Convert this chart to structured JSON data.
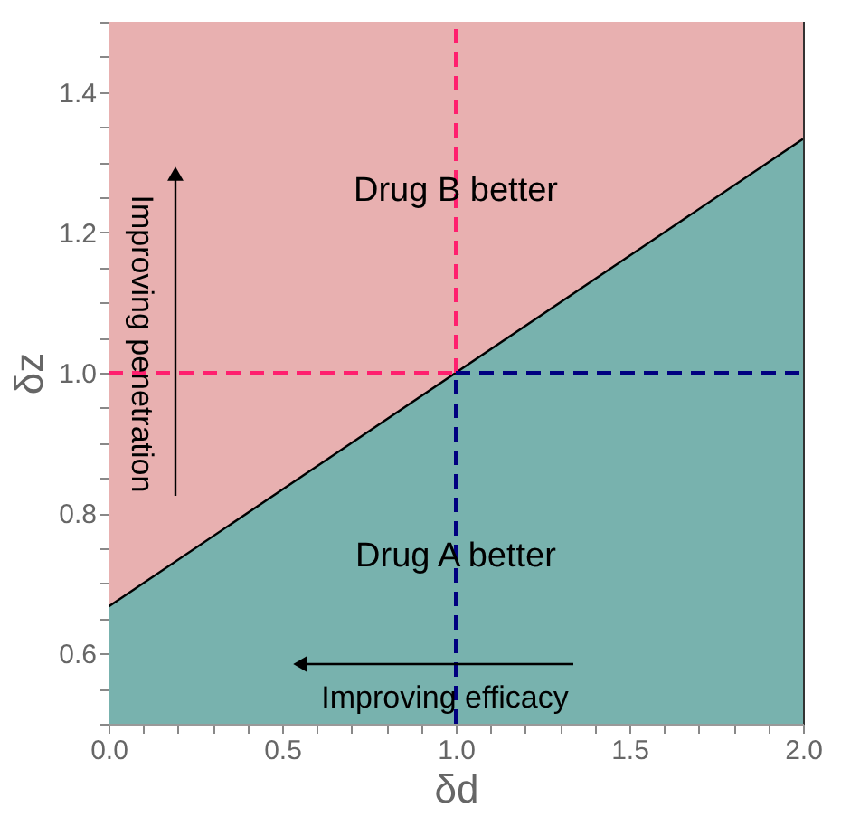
{
  "chart_data": {
    "type": "area",
    "xlabel": "δd",
    "ylabel": "δz",
    "xlim": [
      0,
      2
    ],
    "ylim": [
      0.5,
      1.5
    ],
    "xticks": [
      {
        "value": 0,
        "label": "0.0"
      },
      {
        "value": 0.1,
        "label": null
      },
      {
        "value": 0.2,
        "label": null
      },
      {
        "value": 0.3,
        "label": null
      },
      {
        "value": 0.4,
        "label": null
      },
      {
        "value": 0.5,
        "label": "0.5"
      },
      {
        "value": 0.6,
        "label": null
      },
      {
        "value": 0.7,
        "label": null
      },
      {
        "value": 0.8,
        "label": null
      },
      {
        "value": 0.9,
        "label": null
      },
      {
        "value": 1,
        "label": "1.0"
      },
      {
        "value": 1.1,
        "label": null
      },
      {
        "value": 1.2,
        "label": null
      },
      {
        "value": 1.3,
        "label": null
      },
      {
        "value": 1.4,
        "label": null
      },
      {
        "value": 1.5,
        "label": "1.5"
      },
      {
        "value": 1.6,
        "label": null
      },
      {
        "value": 1.7,
        "label": null
      },
      {
        "value": 1.8,
        "label": null
      },
      {
        "value": 1.9,
        "label": null
      },
      {
        "value": 2,
        "label": "2.0"
      }
    ],
    "yticks": [
      {
        "value": 0.5,
        "label": null
      },
      {
        "value": 0.55,
        "label": null
      },
      0.6,
      {
        "value": 0.65,
        "label": null
      },
      {
        "value": 0.7,
        "label": null
      },
      {
        "value": 0.75,
        "label": null
      },
      0.8,
      {
        "value": 0.85,
        "label": null
      },
      {
        "value": 0.9,
        "label": null
      },
      {
        "value": 0.95,
        "label": null
      },
      {
        "value": 1,
        "label": "1.0"
      },
      {
        "value": 1.05,
        "label": null
      },
      {
        "value": 1.1,
        "label": null
      },
      {
        "value": 1.15,
        "label": null
      },
      1.2,
      {
        "value": 1.25,
        "label": null
      },
      {
        "value": 1.3,
        "label": null
      },
      {
        "value": 1.35,
        "label": null
      },
      1.4,
      {
        "value": 1.45,
        "label": null
      },
      {
        "value": 1.5,
        "label": null
      }
    ],
    "bands": [
      {
        "axis": "y",
        "from": 0.5,
        "to": 1.5,
        "color": "#e8b0b0"
      }
    ],
    "series": [
      {
        "color": "#78b2ae",
        "x": [
          0,
          2
        ],
        "values": [
          0.667,
          1.333
        ]
      },
      {
        "type": "line",
        "color": "#ff1f6e",
        "x": [
          1,
          1
        ],
        "values": [
          1,
          1.5
        ],
        "line_style": "dashed"
      },
      {
        "type": "line",
        "color": "#000080",
        "x": [
          1,
          1
        ],
        "values": [
          0.5,
          1
        ],
        "line_style": "dashed"
      },
      {
        "type": "line",
        "color": "#ff1f6e",
        "x": [
          0,
          1
        ],
        "values": [
          1,
          1
        ],
        "line_style": "dashed"
      },
      {
        "type": "line",
        "color": "#000080",
        "x": [
          1,
          2
        ],
        "values": [
          1,
          1
        ],
        "line_style": "dashed"
      }
    ],
    "annotations": [
      {
        "text": "Drug B better",
        "x": 1,
        "y": 1.26
      },
      {
        "text": "Drug A better",
        "x": 1,
        "y": 0.74
      },
      "Improving penetration",
      "Improving efficacy"
    ],
    "grid": false
  }
}
